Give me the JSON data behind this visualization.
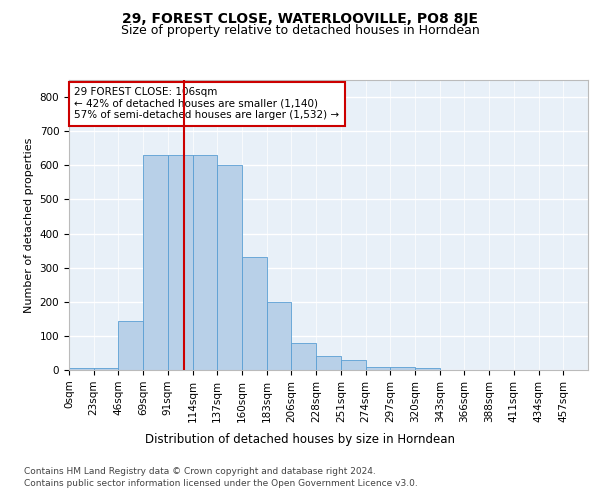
{
  "title1": "29, FOREST CLOSE, WATERLOOVILLE, PO8 8JE",
  "title2": "Size of property relative to detached houses in Horndean",
  "xlabel": "Distribution of detached houses by size in Horndean",
  "ylabel": "Number of detached properties",
  "bin_labels": [
    "0sqm",
    "23sqm",
    "46sqm",
    "69sqm",
    "91sqm",
    "114sqm",
    "137sqm",
    "160sqm",
    "183sqm",
    "206sqm",
    "228sqm",
    "251sqm",
    "274sqm",
    "297sqm",
    "320sqm",
    "343sqm",
    "366sqm",
    "388sqm",
    "411sqm",
    "434sqm",
    "457sqm"
  ],
  "bar_values": [
    5,
    5,
    145,
    630,
    630,
    630,
    600,
    330,
    200,
    80,
    42,
    28,
    10,
    10,
    7,
    0,
    0,
    0,
    0,
    0,
    0
  ],
  "bar_color": "#b8d0e8",
  "bar_edge_color": "#5a9fd4",
  "background_color": "#e8f0f8",
  "grid_color": "#ffffff",
  "vline_color": "#cc0000",
  "annotation_text": "29 FOREST CLOSE: 106sqm\n← 42% of detached houses are smaller (1,140)\n57% of semi-detached houses are larger (1,532) →",
  "annotation_box_color": "#ffffff",
  "annotation_box_edge": "#cc0000",
  "ylim": [
    0,
    850
  ],
  "yticks": [
    0,
    100,
    200,
    300,
    400,
    500,
    600,
    700,
    800
  ],
  "footer1": "Contains HM Land Registry data © Crown copyright and database right 2024.",
  "footer2": "Contains public sector information licensed under the Open Government Licence v3.0.",
  "title1_fontsize": 10,
  "title2_fontsize": 9,
  "xlabel_fontsize": 8.5,
  "ylabel_fontsize": 8,
  "tick_fontsize": 7.5,
  "annotation_fontsize": 7.5,
  "footer_fontsize": 6.5
}
